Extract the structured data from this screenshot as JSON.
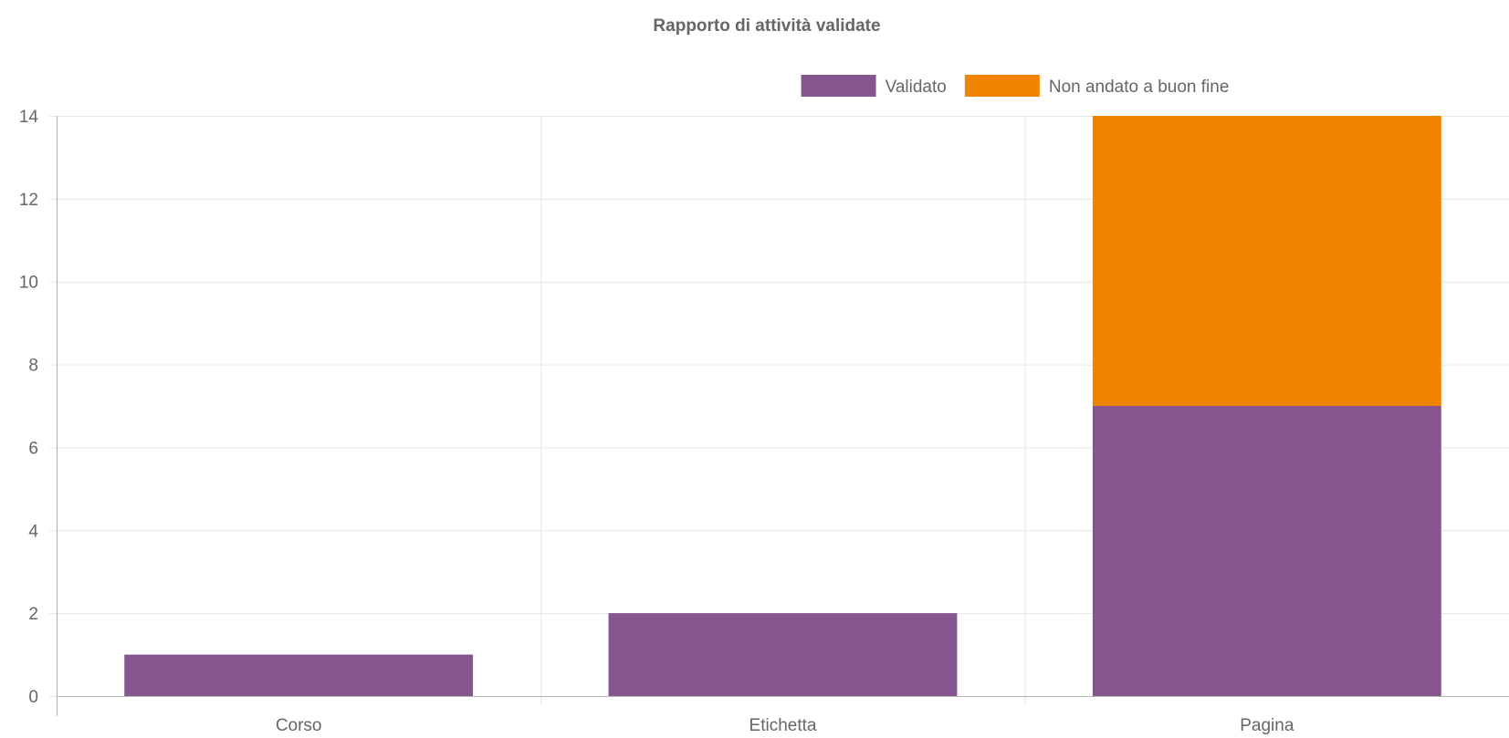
{
  "chart_data": {
    "type": "bar",
    "stacked": true,
    "title": "Rapporto di attività validate",
    "categories": [
      "Corso",
      "Etichetta",
      "Pagina"
    ],
    "series": [
      {
        "name": "Validato",
        "values": [
          1,
          2,
          7
        ],
        "color": "#86548f"
      },
      {
        "name": "Non andato a buon fine",
        "values": [
          0,
          0,
          7
        ],
        "color": "#f08300"
      }
    ],
    "ylim": [
      0,
      14
    ],
    "yticks": [
      0,
      2,
      4,
      6,
      8,
      10,
      12,
      14
    ],
    "grid": true,
    "legend_position": "top-center"
  }
}
